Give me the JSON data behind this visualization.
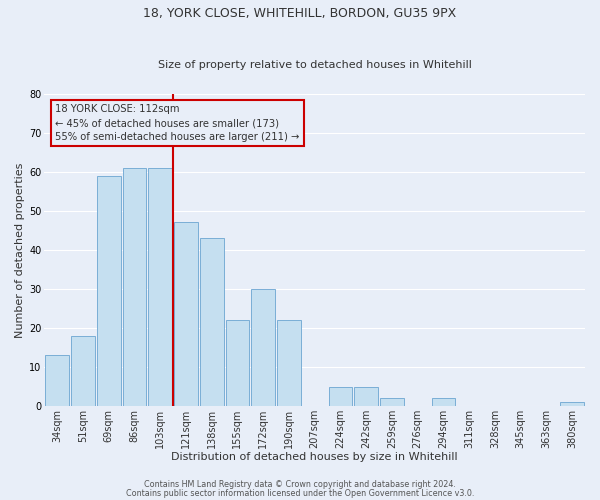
{
  "title": "18, YORK CLOSE, WHITEHILL, BORDON, GU35 9PX",
  "subtitle": "Size of property relative to detached houses in Whitehill",
  "xlabel": "Distribution of detached houses by size in Whitehill",
  "ylabel": "Number of detached properties",
  "bar_labels": [
    "34sqm",
    "51sqm",
    "69sqm",
    "86sqm",
    "103sqm",
    "121sqm",
    "138sqm",
    "155sqm",
    "172sqm",
    "190sqm",
    "207sqm",
    "224sqm",
    "242sqm",
    "259sqm",
    "276sqm",
    "294sqm",
    "311sqm",
    "328sqm",
    "345sqm",
    "363sqm",
    "380sqm"
  ],
  "bar_values": [
    13,
    18,
    59,
    61,
    61,
    47,
    43,
    22,
    30,
    22,
    0,
    5,
    5,
    2,
    0,
    2,
    0,
    0,
    0,
    0,
    1
  ],
  "bar_color": "#c5dff0",
  "bar_edge_color": "#7aaed6",
  "ylim": [
    0,
    80
  ],
  "yticks": [
    0,
    10,
    20,
    30,
    40,
    50,
    60,
    70,
    80
  ],
  "vline_color": "#cc0000",
  "annotation_title": "18 YORK CLOSE: 112sqm",
  "annotation_line1": "← 45% of detached houses are smaller (173)",
  "annotation_line2": "55% of semi-detached houses are larger (211) →",
  "footer_line1": "Contains HM Land Registry data © Crown copyright and database right 2024.",
  "footer_line2": "Contains public sector information licensed under the Open Government Licence v3.0.",
  "background_color": "#e8eef8",
  "grid_color": "#ffffff",
  "title_fontsize": 9,
  "subtitle_fontsize": 8,
  "tick_fontsize": 7,
  "label_fontsize": 8
}
